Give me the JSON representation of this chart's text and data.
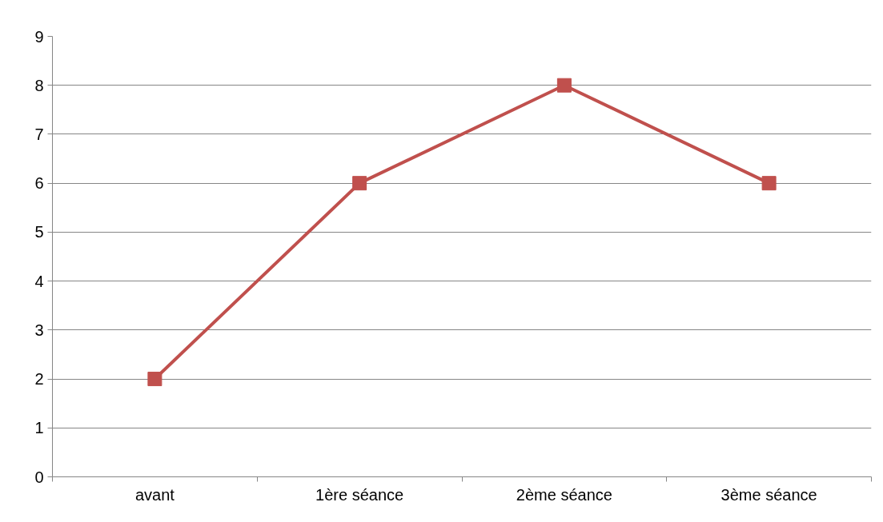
{
  "chart_data": {
    "type": "line",
    "categories": [
      "avant",
      "1ère séance",
      "2ème séance",
      "3ème séance"
    ],
    "series": [
      {
        "color": "#c0504d",
        "values": [
          2,
          6,
          8,
          6
        ]
      }
    ],
    "ylim": [
      0,
      9
    ],
    "yticks": [
      0,
      1,
      2,
      3,
      4,
      5,
      6,
      7,
      8,
      9
    ],
    "grid": "y",
    "marker": "square",
    "line_style": "solid"
  }
}
